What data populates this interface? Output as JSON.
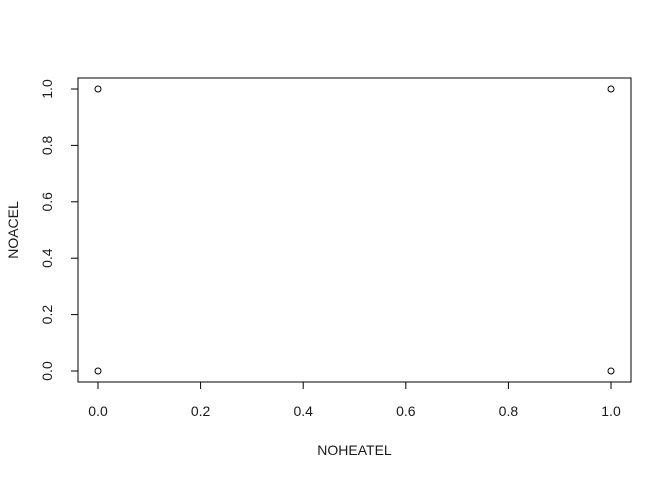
{
  "chart_data": {
    "type": "scatter",
    "title": "",
    "xlabel": "NOHEATEL",
    "ylabel": "NOACEL",
    "xlim": [
      0,
      1
    ],
    "ylim": [
      0,
      1
    ],
    "x_ticks": [
      "0.0",
      "0.2",
      "0.4",
      "0.6",
      "0.8",
      "1.0"
    ],
    "y_ticks": [
      "0.0",
      "0.2",
      "0.4",
      "0.6",
      "0.8",
      "1.0"
    ],
    "points": [
      {
        "x": 0,
        "y": 1
      },
      {
        "x": 1,
        "y": 1
      },
      {
        "x": 0,
        "y": 0
      },
      {
        "x": 1,
        "y": 0
      }
    ],
    "grid": false,
    "marker": "open-circle",
    "colors": {
      "axis": "#000000",
      "text": "#1a1a1a",
      "background": "#ffffff"
    }
  }
}
